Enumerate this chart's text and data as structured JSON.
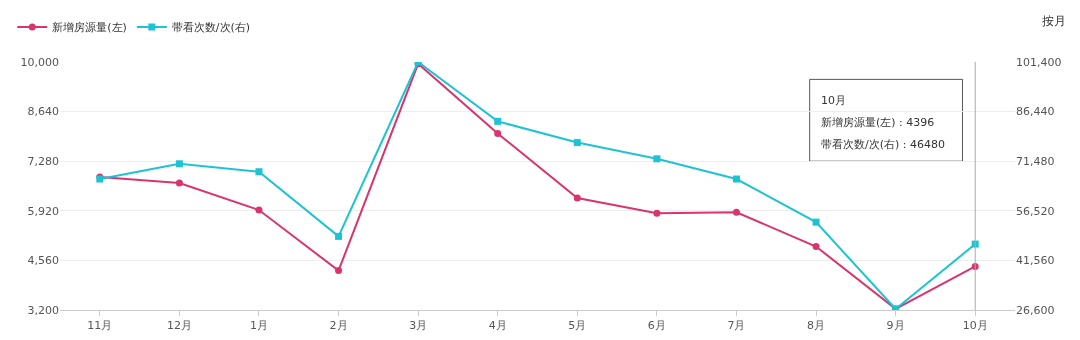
{
  "chart_data": {
    "type": "line",
    "categories": [
      "11月",
      "12月",
      "1月",
      "2月",
      "3月",
      "4月",
      "5月",
      "6月",
      "7月",
      "8月",
      "9月",
      "10月"
    ],
    "series": [
      {
        "name": "新增房源量(左)",
        "color": "#d9346e",
        "marker": "circle",
        "values": [
          6850,
          6680,
          5940,
          4280,
          9950,
          8040,
          6270,
          5850,
          5880,
          4940,
          3230,
          4396
        ]
      },
      {
        "name": "带看次数/次(右)",
        "color": "#1ec3d3",
        "marker": "square",
        "axis": "y2",
        "values": [
          66100,
          70700,
          68300,
          48800,
          101400,
          83500,
          77100,
          72200,
          66100,
          53100,
          26900,
          46480
        ]
      }
    ],
    "ylim": [
      3200,
      10000
    ],
    "yticks": [
      {
        "value": 3200,
        "label": "3,200"
      },
      {
        "value": 4560,
        "label": "4,560"
      },
      {
        "value": 5920,
        "label": "5,920"
      },
      {
        "value": 7280,
        "label": "7,280"
      },
      {
        "value": 8640,
        "label": "8,640"
      },
      {
        "value": 10000,
        "label": "10,000"
      }
    ],
    "y2lim": [
      26600,
      101400
    ],
    "y2ticks": [
      {
        "value": 26600,
        "label": "26,600"
      },
      {
        "value": 41560,
        "label": "41,560"
      },
      {
        "value": 56520,
        "label": "56,520"
      },
      {
        "value": 71480,
        "label": "71,480"
      },
      {
        "value": 86440,
        "label": "86,440"
      },
      {
        "value": 101400,
        "label": "101,400"
      }
    ],
    "grid": "y",
    "legend": "top left",
    "line_style": "solid",
    "ref_lines": [
      {
        "axis": "x",
        "value": "10月",
        "color": "#aaaaaa"
      }
    ],
    "annotations": [
      "按月",
      "10月",
      "新增房源量(左) : 4396",
      "带看次数/次(右) : 46480"
    ]
  }
}
